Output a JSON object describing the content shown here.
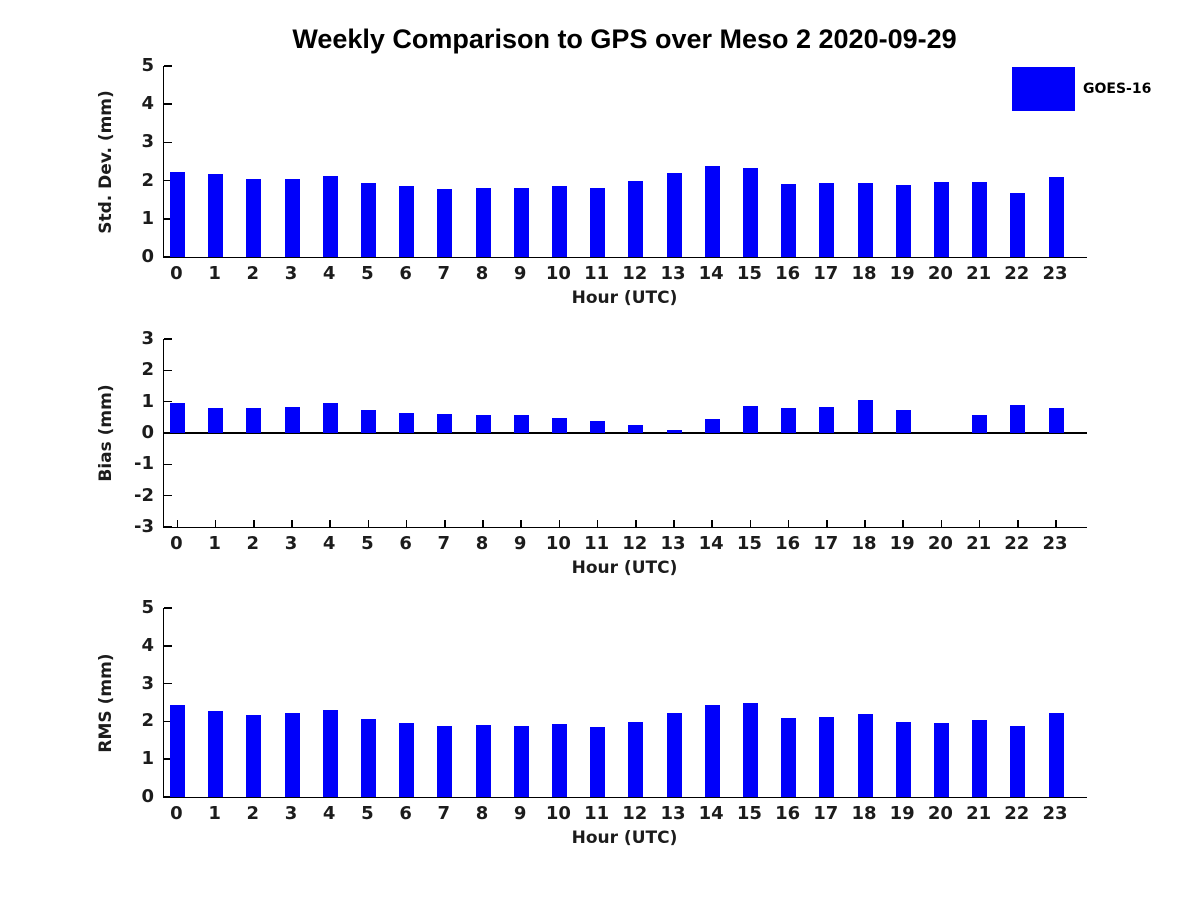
{
  "title": "Weekly Comparison to GPS over Meso 2 2020-09-29",
  "legend": {
    "label": "GOES-16",
    "color": "#0000fa"
  },
  "colors": {
    "bar": "#0000fa",
    "axis": "#000000",
    "text": "#1c1c1c"
  },
  "chart_data": [
    {
      "type": "bar",
      "name": "std-dev",
      "ylabel": "Std. Dev. (mm)",
      "xlabel": "Hour (UTC)",
      "ylim": [
        0,
        5
      ],
      "yticks": [
        0,
        1,
        2,
        3,
        4,
        5
      ],
      "categories": [
        0,
        1,
        2,
        3,
        4,
        5,
        6,
        7,
        8,
        9,
        10,
        11,
        12,
        13,
        14,
        15,
        16,
        17,
        18,
        19,
        20,
        21,
        22,
        23
      ],
      "values": [
        2.23,
        2.16,
        2.05,
        2.04,
        2.13,
        1.95,
        1.87,
        1.79,
        1.81,
        1.81,
        1.85,
        1.8,
        1.98,
        2.19,
        2.38,
        2.33,
        1.92,
        1.94,
        1.94,
        1.88,
        1.97,
        1.96,
        1.68,
        2.09
      ],
      "series_name": "GOES-16",
      "grid": false,
      "legend_position": "top-right"
    },
    {
      "type": "bar",
      "name": "bias",
      "ylabel": "Bias (mm)",
      "xlabel": "Hour (UTC)",
      "ylim": [
        -3,
        3
      ],
      "yticks": [
        -3,
        -2,
        -1,
        0,
        1,
        2,
        3
      ],
      "categories": [
        0,
        1,
        2,
        3,
        4,
        5,
        6,
        7,
        8,
        9,
        10,
        11,
        12,
        13,
        14,
        15,
        16,
        17,
        18,
        19,
        20,
        21,
        22,
        23
      ],
      "values": [
        0.95,
        0.79,
        0.79,
        0.82,
        0.97,
        0.72,
        0.63,
        0.6,
        0.57,
        0.57,
        0.49,
        0.38,
        0.25,
        0.1,
        0.45,
        0.86,
        0.81,
        0.84,
        1.04,
        0.72,
        0.0,
        0.56,
        0.88,
        0.79
      ],
      "series_name": "GOES-16",
      "grid": false,
      "legend_position": "none"
    },
    {
      "type": "bar",
      "name": "rms",
      "ylabel": "RMS (mm)",
      "xlabel": "Hour (UTC)",
      "ylim": [
        0,
        5
      ],
      "yticks": [
        0,
        1,
        2,
        3,
        4,
        5
      ],
      "categories": [
        0,
        1,
        2,
        3,
        4,
        5,
        6,
        7,
        8,
        9,
        10,
        11,
        12,
        13,
        14,
        15,
        16,
        17,
        18,
        19,
        20,
        21,
        22,
        23
      ],
      "values": [
        2.43,
        2.27,
        2.18,
        2.21,
        2.31,
        2.06,
        1.95,
        1.87,
        1.9,
        1.89,
        1.93,
        1.85,
        1.99,
        2.21,
        2.43,
        2.48,
        2.08,
        2.11,
        2.19,
        1.99,
        1.96,
        2.04,
        1.89,
        2.23
      ],
      "series_name": "GOES-16",
      "grid": false,
      "legend_position": "none"
    }
  ]
}
